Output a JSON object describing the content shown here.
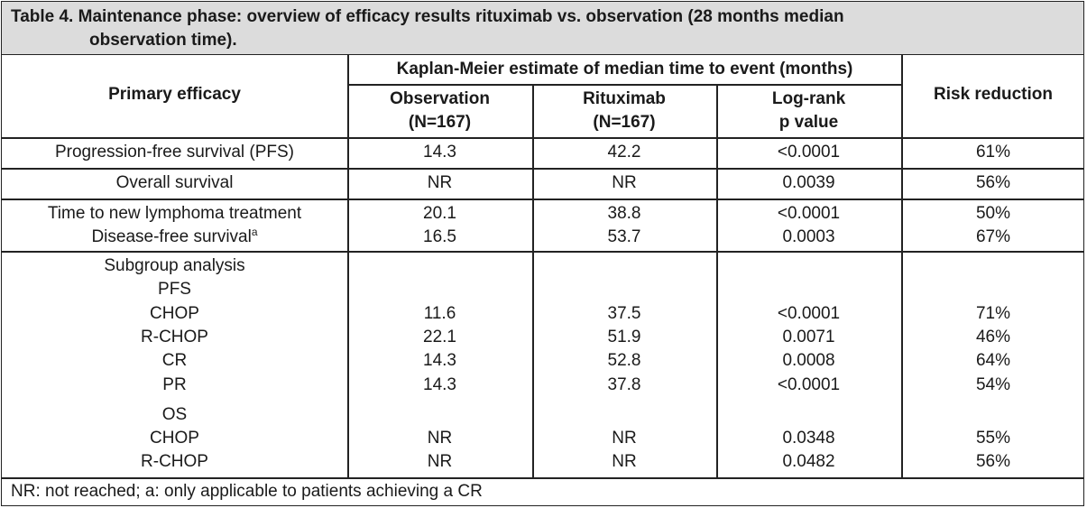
{
  "table": {
    "caption_line1": "Table 4. Maintenance phase: overview of efficacy results rituximab vs. observation (28 months median",
    "caption_line2": "observation time).",
    "headers": {
      "primary": "Primary efficacy",
      "km_group": "Kaplan-Meier estimate of median time to event (months)",
      "observation": "Observation",
      "observation_n": "(N=167)",
      "rituximab": "Rituximab",
      "rituximab_n": "(N=167)",
      "logrank": "Log-rank",
      "pvalue": "p value",
      "risk": "Risk reduction"
    },
    "rows": [
      {
        "label": "Progression-free survival (PFS)",
        "observation": "14.3",
        "rituximab": "42.2",
        "p": "<0.0001",
        "risk": "61%"
      },
      {
        "label": "Overall survival",
        "observation": "NR",
        "rituximab": "NR",
        "p": "0.0039",
        "risk": "56%"
      },
      {
        "label": "Time to new lymphoma treatment",
        "observation": "20.1",
        "rituximab": "38.8",
        "p": "<0.0001",
        "risk": "50%"
      },
      {
        "label": "Disease-free survival",
        "label_sup": "a",
        "observation": "16.5",
        "rituximab": "53.7",
        "p": "0.0003",
        "risk": "67%"
      }
    ],
    "subgroup": {
      "title": "Subgroup analysis",
      "pfs_label": "PFS",
      "pfs_rows": [
        {
          "label": "CHOP",
          "observation": "11.6",
          "rituximab": "37.5",
          "p": "<0.0001",
          "risk": "71%"
        },
        {
          "label": "R-CHOP",
          "observation": "22.1",
          "rituximab": "51.9",
          "p": "0.0071",
          "risk": "46%"
        },
        {
          "label": "CR",
          "observation": "14.3",
          "rituximab": "52.8",
          "p": "0.0008",
          "risk": "64%"
        },
        {
          "label": "PR",
          "observation": "14.3",
          "rituximab": "37.8",
          "p": "<0.0001",
          "risk": "54%"
        }
      ],
      "os_label": "OS",
      "os_rows": [
        {
          "label": "CHOP",
          "observation": "NR",
          "rituximab": "NR",
          "p": "0.0348",
          "risk": "55%"
        },
        {
          "label": "R-CHOP",
          "observation": "NR",
          "rituximab": "NR",
          "p": "0.0482",
          "risk": "56%"
        }
      ]
    },
    "footnote": "NR: not reached; a: only applicable to patients achieving a CR"
  }
}
